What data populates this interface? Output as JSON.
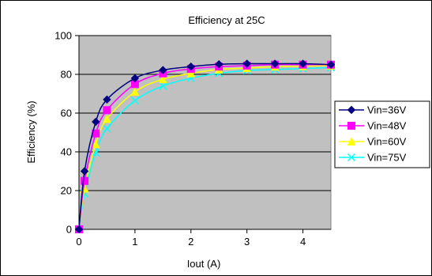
{
  "chart_data": {
    "type": "line",
    "title": "Efficiency at 25C",
    "xlabel": "Iout (A)",
    "ylabel": "Efficiency (%)",
    "xlim": [
      0,
      4.5
    ],
    "ylim": [
      0,
      100
    ],
    "xticks": [
      0,
      1,
      2,
      3,
      4
    ],
    "yticks": [
      0,
      20,
      40,
      60,
      80,
      100
    ],
    "grid": "horizontal major gridlines",
    "plot_background": "#C0C0C0",
    "legend_position": "right",
    "series": [
      {
        "name": "Vin=36V",
        "color": "#000080",
        "marker": "diamond",
        "x": [
          0,
          0.1,
          0.3,
          0.5,
          1,
          1.5,
          2,
          2.5,
          3,
          3.5,
          4,
          4.5
        ],
        "y": [
          0,
          30,
          55.5,
          67,
          78,
          82.2,
          84,
          85.2,
          85.5,
          85.5,
          85.5,
          85
        ]
      },
      {
        "name": "Vin=48V",
        "color": "#FF00FF",
        "marker": "square",
        "x": [
          0,
          0.1,
          0.3,
          0.5,
          1,
          1.5,
          2,
          2.5,
          3,
          3.5,
          4,
          4.5
        ],
        "y": [
          0,
          25,
          49.5,
          61.5,
          75,
          80.5,
          82.8,
          84,
          84.5,
          85,
          85,
          85
        ]
      },
      {
        "name": "Vin=60V",
        "color": "#FFFF00",
        "marker": "triangle",
        "x": [
          0,
          0.1,
          0.3,
          0.5,
          1,
          1.5,
          2,
          2.5,
          3,
          3.5,
          4,
          4.5
        ],
        "y": [
          0,
          21,
          44,
          57,
          71,
          77.5,
          80.5,
          82.5,
          83.2,
          84,
          84.2,
          84.5
        ]
      },
      {
        "name": "Vin=75V",
        "color": "#00FFFF",
        "marker": "x",
        "x": [
          0,
          0.1,
          0.3,
          0.5,
          1,
          1.5,
          2,
          2.5,
          3,
          3.5,
          4,
          4.5
        ],
        "y": [
          0,
          18.5,
          39.5,
          52,
          66.5,
          74,
          78,
          80.5,
          82,
          82.5,
          83,
          83.5
        ]
      }
    ]
  }
}
